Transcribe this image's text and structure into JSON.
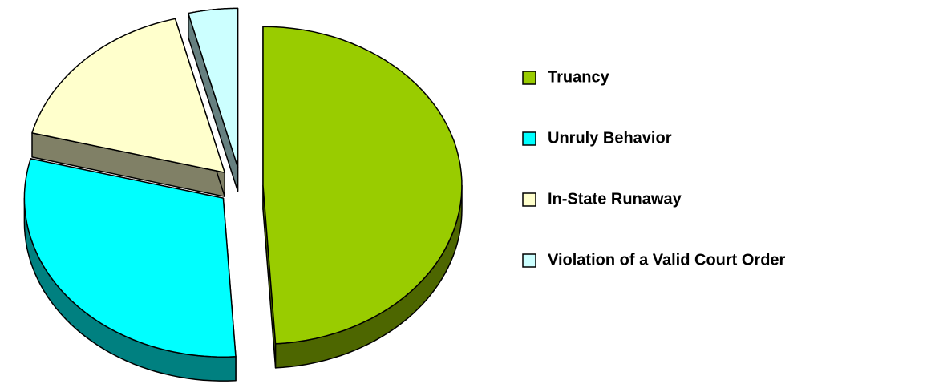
{
  "chart_data": {
    "type": "pie",
    "categories": [
      "Truancy",
      "Unruly Behavior",
      "In-State Runaway",
      "Violation of a Valid Court Order"
    ],
    "values": [
      49,
      30,
      17,
      4
    ],
    "colors": [
      "#99cc00",
      "#00ffff",
      "#ffffcc",
      "#ccffff"
    ],
    "legend": "right"
  }
}
